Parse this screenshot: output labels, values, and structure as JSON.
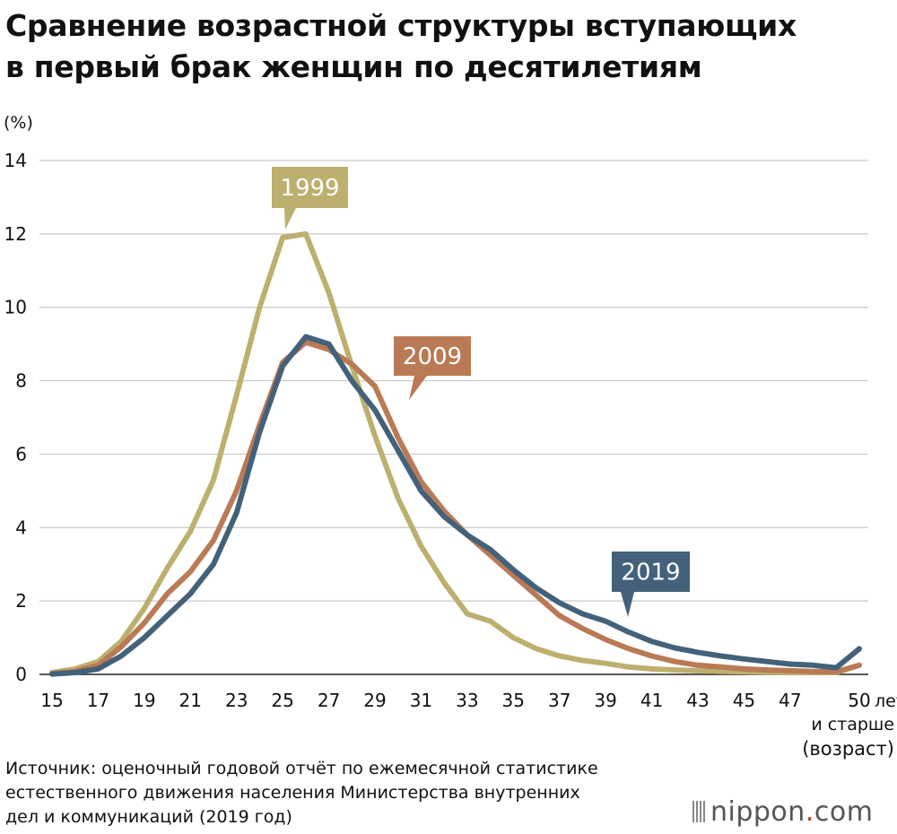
{
  "title_lines": [
    "Сравнение возрастной структуры вступающих",
    "в первый брак женщин по десятилетиям"
  ],
  "source_lines": [
    "Источник: оценочный годовой отчёт по ежемесячной статистике",
    "естественного движения населения Министерства внутренних",
    "дел и коммуникаций (2019 год)"
  ],
  "logo": {
    "text_main": "nippon",
    "text_dot": ".",
    "text_tail": "com"
  },
  "chart_data": {
    "type": "line",
    "ylabel": "(%)",
    "xlabel": "(возраст)",
    "ylim": [
      0,
      14
    ],
    "yticks": [
      0,
      2,
      4,
      6,
      8,
      10,
      12,
      14
    ],
    "x": [
      15,
      16,
      17,
      18,
      19,
      20,
      21,
      22,
      23,
      24,
      25,
      26,
      27,
      28,
      29,
      30,
      31,
      32,
      33,
      34,
      35,
      36,
      37,
      38,
      39,
      40,
      41,
      42,
      43,
      44,
      45,
      46,
      47,
      48,
      49,
      50
    ],
    "xticks": [
      "15",
      "17",
      "19",
      "21",
      "23",
      "25",
      "27",
      "29",
      "31",
      "33",
      "35",
      "37",
      "39",
      "41",
      "43",
      "45",
      "47",
      "50"
    ],
    "last_tick_suffix": [
      "лет",
      "и старше"
    ],
    "grid": true,
    "series": [
      {
        "name": "1999",
        "color": "#bdb06f",
        "values": [
          0.05,
          0.15,
          0.35,
          0.9,
          1.8,
          2.9,
          3.9,
          5.3,
          7.6,
          10.0,
          11.9,
          12.0,
          10.4,
          8.4,
          6.5,
          4.8,
          3.5,
          2.5,
          1.65,
          1.45,
          1.0,
          0.7,
          0.5,
          0.38,
          0.3,
          0.2,
          0.15,
          0.12,
          0.1,
          0.08,
          0.07,
          0.06,
          0.05,
          0.05,
          0.05,
          0.25
        ]
      },
      {
        "name": "2009",
        "color": "#b97a55",
        "values": [
          0.02,
          0.08,
          0.25,
          0.75,
          1.4,
          2.2,
          2.8,
          3.65,
          5.0,
          6.8,
          8.5,
          9.05,
          8.85,
          8.45,
          7.85,
          6.45,
          5.25,
          4.45,
          3.8,
          3.25,
          2.7,
          2.15,
          1.6,
          1.25,
          0.95,
          0.7,
          0.5,
          0.35,
          0.25,
          0.2,
          0.15,
          0.12,
          0.1,
          0.08,
          0.07,
          0.25
        ]
      },
      {
        "name": "2019",
        "color": "#43617a",
        "values": [
          0.01,
          0.05,
          0.15,
          0.5,
          1.0,
          1.6,
          2.2,
          3.0,
          4.4,
          6.6,
          8.4,
          9.2,
          9.0,
          8.0,
          7.2,
          6.1,
          5.0,
          4.3,
          3.8,
          3.4,
          2.85,
          2.35,
          1.95,
          1.65,
          1.45,
          1.15,
          0.9,
          0.72,
          0.6,
          0.5,
          0.42,
          0.35,
          0.28,
          0.25,
          0.18,
          0.7
        ]
      }
    ],
    "annotations": [
      {
        "label": "1999",
        "series": "1999",
        "bg": "#bdb06f"
      },
      {
        "label": "2009",
        "series": "2009",
        "bg": "#b97a55"
      },
      {
        "label": "2019",
        "series": "2019",
        "bg": "#43617a"
      }
    ]
  }
}
